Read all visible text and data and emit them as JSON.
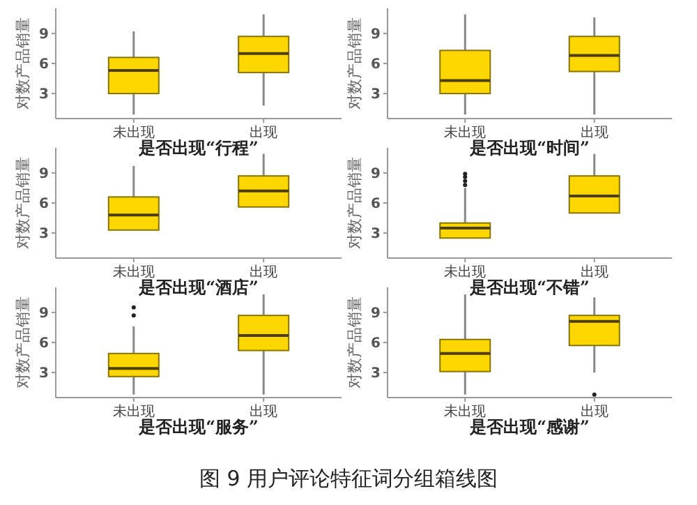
{
  "chart_data": [
    {
      "type": "box",
      "categories": [
        "未出现",
        "出现"
      ],
      "xlabel": "是否出现“行程”",
      "ylabel": "对数产品销量",
      "ylim": [
        0.5,
        11.5
      ],
      "yticks": [
        3,
        6,
        9
      ],
      "colors": [
        "#ffd700",
        "#ffd700"
      ],
      "boxes": [
        {
          "low": 0.9,
          "q1": 3.0,
          "median": 5.3,
          "q3": 6.6,
          "high": 9.2
        },
        {
          "low": 1.8,
          "q1": 5.1,
          "median": 7.0,
          "q3": 8.7,
          "high": 10.9
        }
      ]
    },
    {
      "type": "box",
      "categories": [
        "未出现",
        "出现"
      ],
      "xlabel": "是否出现“时间”",
      "ylabel": "对数产品销量",
      "ylim": [
        0.5,
        11.5
      ],
      "yticks": [
        3,
        6,
        9
      ],
      "colors": [
        "#ffd700",
        "#ffd700"
      ],
      "boxes": [
        {
          "low": 0.9,
          "q1": 3.0,
          "median": 4.3,
          "q3": 7.3,
          "high": 10.9
        },
        {
          "low": 0.9,
          "q1": 5.2,
          "median": 6.8,
          "q3": 8.7,
          "high": 10.6
        }
      ]
    },
    {
      "type": "box",
      "categories": [
        "未出现",
        "出现"
      ],
      "xlabel": "是否出现“酒店”",
      "ylabel": "对数产品销量",
      "ylim": [
        0.5,
        11.5
      ],
      "yticks": [
        3,
        6,
        9
      ],
      "colors": [
        "#ffd700",
        "#ffd700"
      ],
      "boxes": [
        {
          "low": null,
          "q1": 3.3,
          "median": 4.8,
          "q3": 6.6,
          "high": 9.7
        },
        {
          "low": null,
          "q1": 5.6,
          "median": 7.2,
          "q3": 8.7,
          "high": 10.9
        }
      ]
    },
    {
      "type": "box",
      "categories": [
        "未出现",
        "出现"
      ],
      "xlabel": "是否出现“不错”",
      "ylabel": "对数产品销量",
      "ylim": [
        0.5,
        11.5
      ],
      "yticks": [
        3,
        6,
        9
      ],
      "colors": [
        "#ffd700",
        "#ffd700"
      ],
      "boxes": [
        {
          "low": null,
          "q1": 2.5,
          "median": 3.5,
          "q3": 4.0,
          "high": 7.5,
          "outliers": [
            7.8,
            8.2,
            8.6,
            8.9
          ]
        },
        {
          "low": null,
          "q1": 5.0,
          "median": 6.7,
          "q3": 8.7,
          "high": 10.9
        }
      ]
    },
    {
      "type": "box",
      "categories": [
        "未出现",
        "出现"
      ],
      "xlabel": "是否出现“服务”",
      "ylabel": "对数产品销量",
      "ylim": [
        0.5,
        11.5
      ],
      "yticks": [
        3,
        6,
        9
      ],
      "colors": [
        "#ffd700",
        "#ffd700"
      ],
      "boxes": [
        {
          "low": 0.8,
          "q1": 2.6,
          "median": 3.4,
          "q3": 4.9,
          "high": 7.6,
          "outliers": [
            8.7,
            9.5
          ]
        },
        {
          "low": 0.8,
          "q1": 5.2,
          "median": 6.7,
          "q3": 8.7,
          "high": 10.8
        }
      ]
    },
    {
      "type": "box",
      "categories": [
        "未出现",
        "出现"
      ],
      "xlabel": "是否出现“感谢”",
      "ylabel": "对数产品销量",
      "ylim": [
        0.5,
        11.5
      ],
      "yticks": [
        3,
        6,
        9
      ],
      "colors": [
        "#ffd700",
        "#ffd700"
      ],
      "boxes": [
        {
          "low": 0.8,
          "q1": 3.1,
          "median": 4.9,
          "q3": 6.3,
          "high": 10.8
        },
        {
          "low": 3.0,
          "q1": 5.7,
          "median": 8.1,
          "q3": 8.7,
          "high": 10.5,
          "outliers": [
            0.8
          ]
        }
      ]
    },
    {
      "type": "other",
      "title": "图 9 用户评论特征词分组箱线图"
    }
  ]
}
